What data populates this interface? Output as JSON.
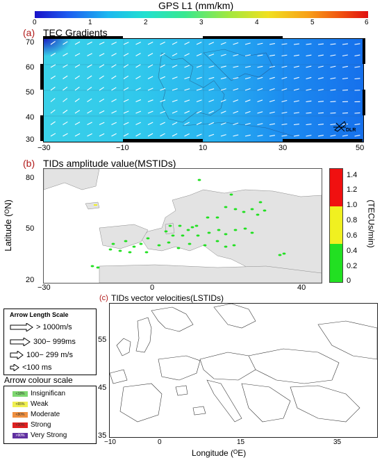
{
  "panel_a": {
    "colorbar_title": "GPS L1 (mm/km)",
    "colorbar_ticks": [
      "0",
      "1",
      "2",
      "3",
      "4",
      "5",
      "6"
    ],
    "letter": "(a)",
    "title": "TEC Gradients",
    "lat_ticks": [
      "70",
      "60",
      "50",
      "40",
      "30"
    ],
    "lon_ticks": [
      "−30",
      "−10",
      "10",
      "30",
      "50"
    ],
    "logo_text": "DLR"
  },
  "panel_b": {
    "letter": "(b)",
    "title": "TIDs amplitude value(MSTIDs)",
    "ylabel": "Latitude (ᴼN)",
    "lat_ticks": [
      "80",
      "50",
      "20"
    ],
    "lon_ticks": [
      "−30",
      "0",
      "40"
    ],
    "colorbar_ticks": [
      "1.4",
      "1.2",
      "1.0",
      "0.8",
      "0.6",
      "0.4",
      "0.2",
      "0"
    ],
    "colorbar_label": "(TECUs/min)",
    "colorbar_colors": {
      "low": "#22e022",
      "mid": "#f0f020",
      "high": "#f01010"
    }
  },
  "panel_c": {
    "letter": "(c)",
    "title": "TIDs vector velocities(LSTIDs)",
    "xlabel": "Longitude (ᴼE)",
    "lat_ticks": [
      "55",
      "45",
      "35"
    ],
    "lon_ticks": [
      "−10",
      "0",
      "15",
      "35"
    ],
    "arrow_scale": {
      "title": "Arrow Length Scale",
      "items": [
        "> 1000m/s",
        "300− 999ms",
        "100− 299 m/s",
        "<100 ms"
      ]
    },
    "colour_scale": {
      "title": "Arrow colour scale",
      "items": [
        {
          "label": "Insignifican",
          "pct": "<18%",
          "color": "#7ed870"
        },
        {
          "label": "Weak",
          "pct": "<65%",
          "color": "#f0f050"
        },
        {
          "label": "Moderate",
          "pct": "<80%",
          "color": "#f09040"
        },
        {
          "label": "Strong",
          "pct": "<90%",
          "color": "#e02020"
        },
        {
          "label": "Very Strong",
          "pct": ">90%",
          "color": "#6030a0"
        }
      ]
    }
  }
}
